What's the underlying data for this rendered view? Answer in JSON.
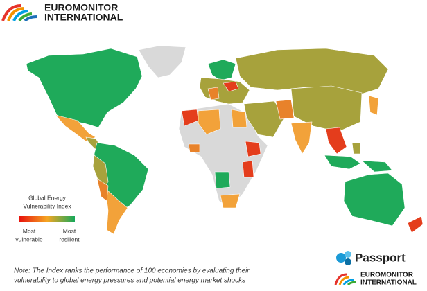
{
  "header": {
    "logo_line1": "EUROMONITOR",
    "logo_line2": "INTERNATIONAL"
  },
  "legend": {
    "title_line1": "Global Energy",
    "title_line2": "Vulnerability Index",
    "low_label_line1": "Most",
    "low_label_line2": "vulnerable",
    "high_label_line1": "Most",
    "high_label_line2": "resilient"
  },
  "note": {
    "line1": "Note: The Index ranks the performance of 100 economies by evaluating their",
    "line2": "vulnerability to global energy pressures and potential energy market shocks"
  },
  "footer": {
    "product": "Passport",
    "logo_line1": "EUROMONITOR",
    "logo_line2": "INTERNATIONAL"
  }
}
